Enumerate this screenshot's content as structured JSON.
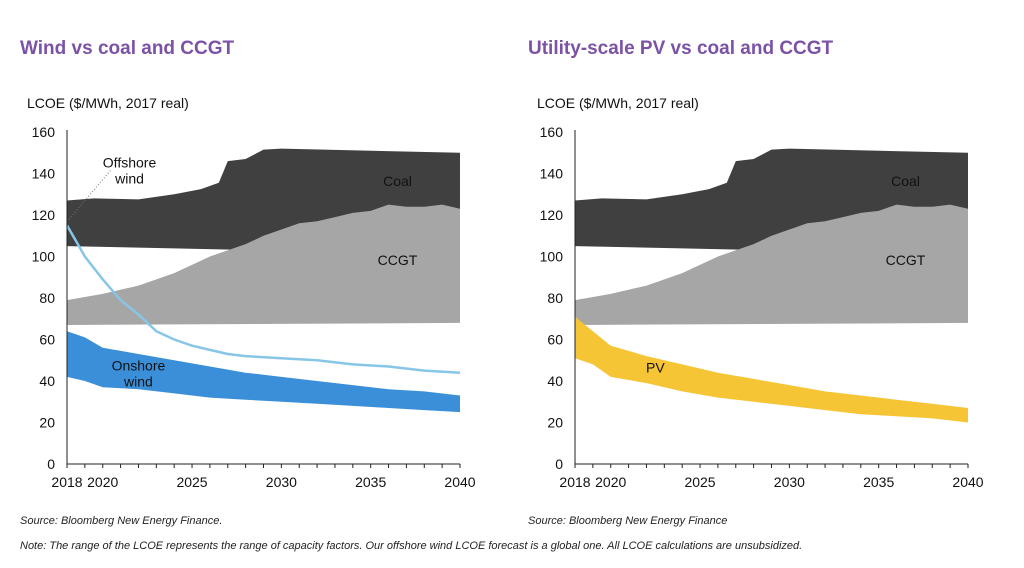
{
  "footer": {
    "note": "Note: The range of the LCOE represents the range of capacity factors. Our offshore wind LCOE forecast is a global one. All LCOE calculations are unsubsidized."
  },
  "chart_data": [
    {
      "type": "area",
      "title": "Wind vs coal and CCGT",
      "ylabel": "LCOE ($/MWh, 2017 real)",
      "source": "Source: Bloomberg New Energy Finance.",
      "xlim": [
        2018,
        2040
      ],
      "ylim": [
        0,
        160
      ],
      "x_ticks": [
        2018,
        2020,
        2025,
        2030,
        2035,
        2040
      ],
      "y_ticks": [
        0,
        20,
        40,
        60,
        80,
        100,
        120,
        140,
        160
      ],
      "grid": false,
      "bands": [
        {
          "name": "Coal",
          "color": "#404040",
          "label_pos": [
            2036.5,
            134
          ],
          "upper": [
            [
              2018,
              127
            ],
            [
              2019.5,
              128
            ],
            [
              2022,
              127.5
            ],
            [
              2024,
              130
            ],
            [
              2025.5,
              132.5
            ],
            [
              2026.5,
              135.5
            ],
            [
              2027,
              146
            ],
            [
              2028,
              147
            ],
            [
              2029,
              151.5
            ],
            [
              2030,
              152
            ],
            [
              2040,
              150
            ]
          ],
          "lower": [
            [
              2018,
              105
            ],
            [
              2040,
              101
            ]
          ]
        },
        {
          "name": "CCGT",
          "color": "#a6a6a6",
          "label_pos": [
            2036.5,
            96
          ],
          "upper": [
            [
              2018,
              79
            ],
            [
              2020,
              82
            ],
            [
              2022,
              86
            ],
            [
              2024,
              92
            ],
            [
              2026,
              100
            ],
            [
              2028,
              106
            ],
            [
              2029,
              110
            ],
            [
              2030,
              113
            ],
            [
              2031,
              116
            ],
            [
              2032,
              117
            ],
            [
              2033,
              119
            ],
            [
              2034,
              121
            ],
            [
              2035,
              122
            ],
            [
              2036,
              125
            ],
            [
              2037,
              124
            ],
            [
              2038,
              124
            ],
            [
              2039,
              125
            ],
            [
              2040,
              123
            ]
          ],
          "lower": [
            [
              2018,
              67
            ],
            [
              2040,
              68
            ]
          ]
        },
        {
          "name": "Onshore wind",
          "label_lines": [
            "Onshore",
            "wind"
          ],
          "color": "#3b8fd8",
          "label_pos": [
            2022,
            45
          ],
          "upper": [
            [
              2018,
              64
            ],
            [
              2019,
              61
            ],
            [
              2020,
              56
            ],
            [
              2022,
              53
            ],
            [
              2024,
              50
            ],
            [
              2026,
              47
            ],
            [
              2028,
              44
            ],
            [
              2030,
              42
            ],
            [
              2032,
              40
            ],
            [
              2034,
              38
            ],
            [
              2036,
              36
            ],
            [
              2038,
              35
            ],
            [
              2040,
              33
            ]
          ],
          "lower": [
            [
              2018,
              42
            ],
            [
              2019,
              40
            ],
            [
              2020,
              37
            ],
            [
              2022,
              36
            ],
            [
              2024,
              34
            ],
            [
              2026,
              32
            ],
            [
              2028,
              31
            ],
            [
              2030,
              30
            ],
            [
              2032,
              29
            ],
            [
              2034,
              28
            ],
            [
              2036,
              27
            ],
            [
              2038,
              26
            ],
            [
              2040,
              25
            ]
          ]
        }
      ],
      "lines": [
        {
          "name": "Offshore wind",
          "label_lines": [
            "Offshore",
            "wind"
          ],
          "color": "#87c6e6",
          "label_pos": [
            2021.5,
            143
          ],
          "points": [
            [
              2018,
              115
            ],
            [
              2019,
              100
            ],
            [
              2020,
              89
            ],
            [
              2021,
              79
            ],
            [
              2022,
              72
            ],
            [
              2023,
              64
            ],
            [
              2024,
              60
            ],
            [
              2025,
              57
            ],
            [
              2026,
              55
            ],
            [
              2027,
              53
            ],
            [
              2028,
              52
            ],
            [
              2030,
              51
            ],
            [
              2032,
              50
            ],
            [
              2034,
              48
            ],
            [
              2036,
              47
            ],
            [
              2038,
              45
            ],
            [
              2040,
              44
            ]
          ]
        }
      ]
    },
    {
      "type": "area",
      "title": "Utility-scale PV vs coal and CCGT",
      "ylabel": "LCOE ($/MWh, 2017 real)",
      "source": "Source: Bloomberg New Energy Finance",
      "xlim": [
        2018,
        2040
      ],
      "ylim": [
        0,
        160
      ],
      "x_ticks": [
        2018,
        2020,
        2025,
        2030,
        2035,
        2040
      ],
      "y_ticks": [
        0,
        20,
        40,
        60,
        80,
        100,
        120,
        140,
        160
      ],
      "grid": false,
      "bands": [
        {
          "name": "Coal",
          "color": "#404040",
          "label_pos": [
            2036.5,
            134
          ],
          "upper": [
            [
              2018,
              127
            ],
            [
              2019.5,
              128
            ],
            [
              2022,
              127.5
            ],
            [
              2024,
              130
            ],
            [
              2025.5,
              132.5
            ],
            [
              2026.5,
              135.5
            ],
            [
              2027,
              146
            ],
            [
              2028,
              147
            ],
            [
              2029,
              151.5
            ],
            [
              2030,
              152
            ],
            [
              2040,
              150
            ]
          ],
          "lower": [
            [
              2018,
              105
            ],
            [
              2040,
              101
            ]
          ]
        },
        {
          "name": "CCGT",
          "color": "#a6a6a6",
          "label_pos": [
            2036.5,
            96
          ],
          "upper": [
            [
              2018,
              79
            ],
            [
              2020,
              82
            ],
            [
              2022,
              86
            ],
            [
              2024,
              92
            ],
            [
              2026,
              100
            ],
            [
              2028,
              106
            ],
            [
              2029,
              110
            ],
            [
              2030,
              113
            ],
            [
              2031,
              116
            ],
            [
              2032,
              117
            ],
            [
              2033,
              119
            ],
            [
              2034,
              121
            ],
            [
              2035,
              122
            ],
            [
              2036,
              125
            ],
            [
              2037,
              124
            ],
            [
              2038,
              124
            ],
            [
              2039,
              125
            ],
            [
              2040,
              123
            ]
          ],
          "lower": [
            [
              2018,
              67
            ],
            [
              2040,
              68
            ]
          ]
        },
        {
          "name": "PV",
          "color": "#f6c536",
          "label_pos": [
            2022.5,
            44
          ],
          "upper": [
            [
              2018,
              71
            ],
            [
              2019,
              64
            ],
            [
              2020,
              57
            ],
            [
              2022,
              52
            ],
            [
              2024,
              48
            ],
            [
              2026,
              44
            ],
            [
              2028,
              41
            ],
            [
              2030,
              38
            ],
            [
              2032,
              35
            ],
            [
              2034,
              33
            ],
            [
              2036,
              31
            ],
            [
              2038,
              29
            ],
            [
              2040,
              27
            ]
          ],
          "lower": [
            [
              2018,
              51
            ],
            [
              2019,
              48
            ],
            [
              2020,
              42
            ],
            [
              2022,
              39
            ],
            [
              2024,
              35
            ],
            [
              2026,
              32
            ],
            [
              2028,
              30
            ],
            [
              2030,
              28
            ],
            [
              2032,
              26
            ],
            [
              2034,
              24
            ],
            [
              2036,
              23
            ],
            [
              2038,
              22
            ],
            [
              2040,
              20
            ]
          ]
        }
      ],
      "lines": []
    }
  ]
}
